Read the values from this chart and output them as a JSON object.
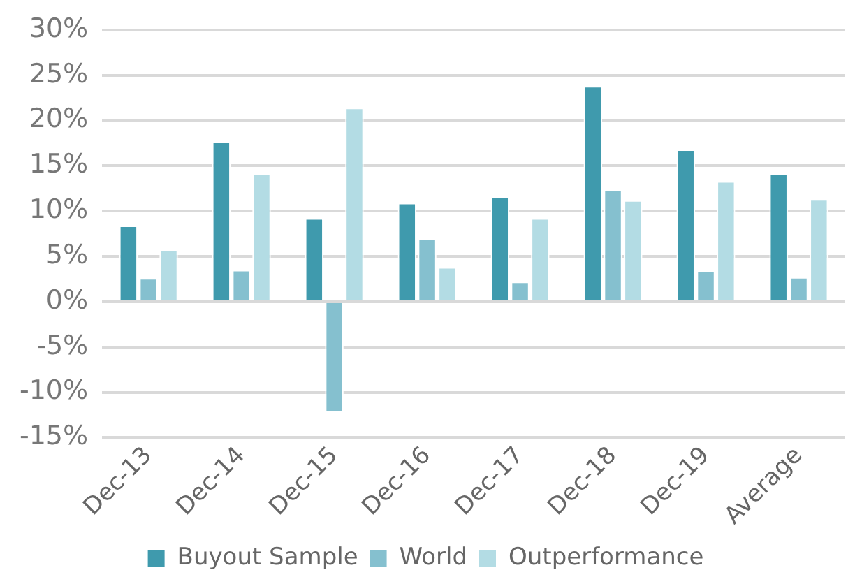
{
  "chart_data": {
    "type": "bar",
    "categories": [
      "Dec-13",
      "Dec-14",
      "Dec-15",
      "Dec-16",
      "Dec-17",
      "Dec-18",
      "Dec-19",
      "Average"
    ],
    "series": [
      {
        "name": "Buyout Sample",
        "color": "#3f9aad",
        "values": [
          8.4,
          17.7,
          9.2,
          10.9,
          11.6,
          23.8,
          16.8,
          14.1
        ]
      },
      {
        "name": "World",
        "color": "#85c0cf",
        "values": [
          2.6,
          3.5,
          -12.2,
          7.0,
          2.2,
          12.4,
          3.4,
          2.7
        ]
      },
      {
        "name": "Outperformance",
        "color": "#b3dce4",
        "values": [
          5.7,
          14.1,
          21.4,
          3.8,
          9.2,
          11.2,
          13.3,
          11.3
        ]
      }
    ],
    "ylim": [
      -15,
      30
    ],
    "yticks": [
      {
        "value": -15,
        "label": "-15%"
      },
      {
        "value": -10,
        "label": "-10%"
      },
      {
        "value": -5,
        "label": "-5%"
      },
      {
        "value": 0,
        "label": "0%"
      },
      {
        "value": 5,
        "label": "5%"
      },
      {
        "value": 10,
        "label": "10%"
      },
      {
        "value": 15,
        "label": "15%"
      },
      {
        "value": 20,
        "label": "20%"
      },
      {
        "value": 25,
        "label": "25%"
      },
      {
        "value": 30,
        "label": "30%"
      }
    ],
    "grid": "y",
    "legend": "bottom"
  }
}
